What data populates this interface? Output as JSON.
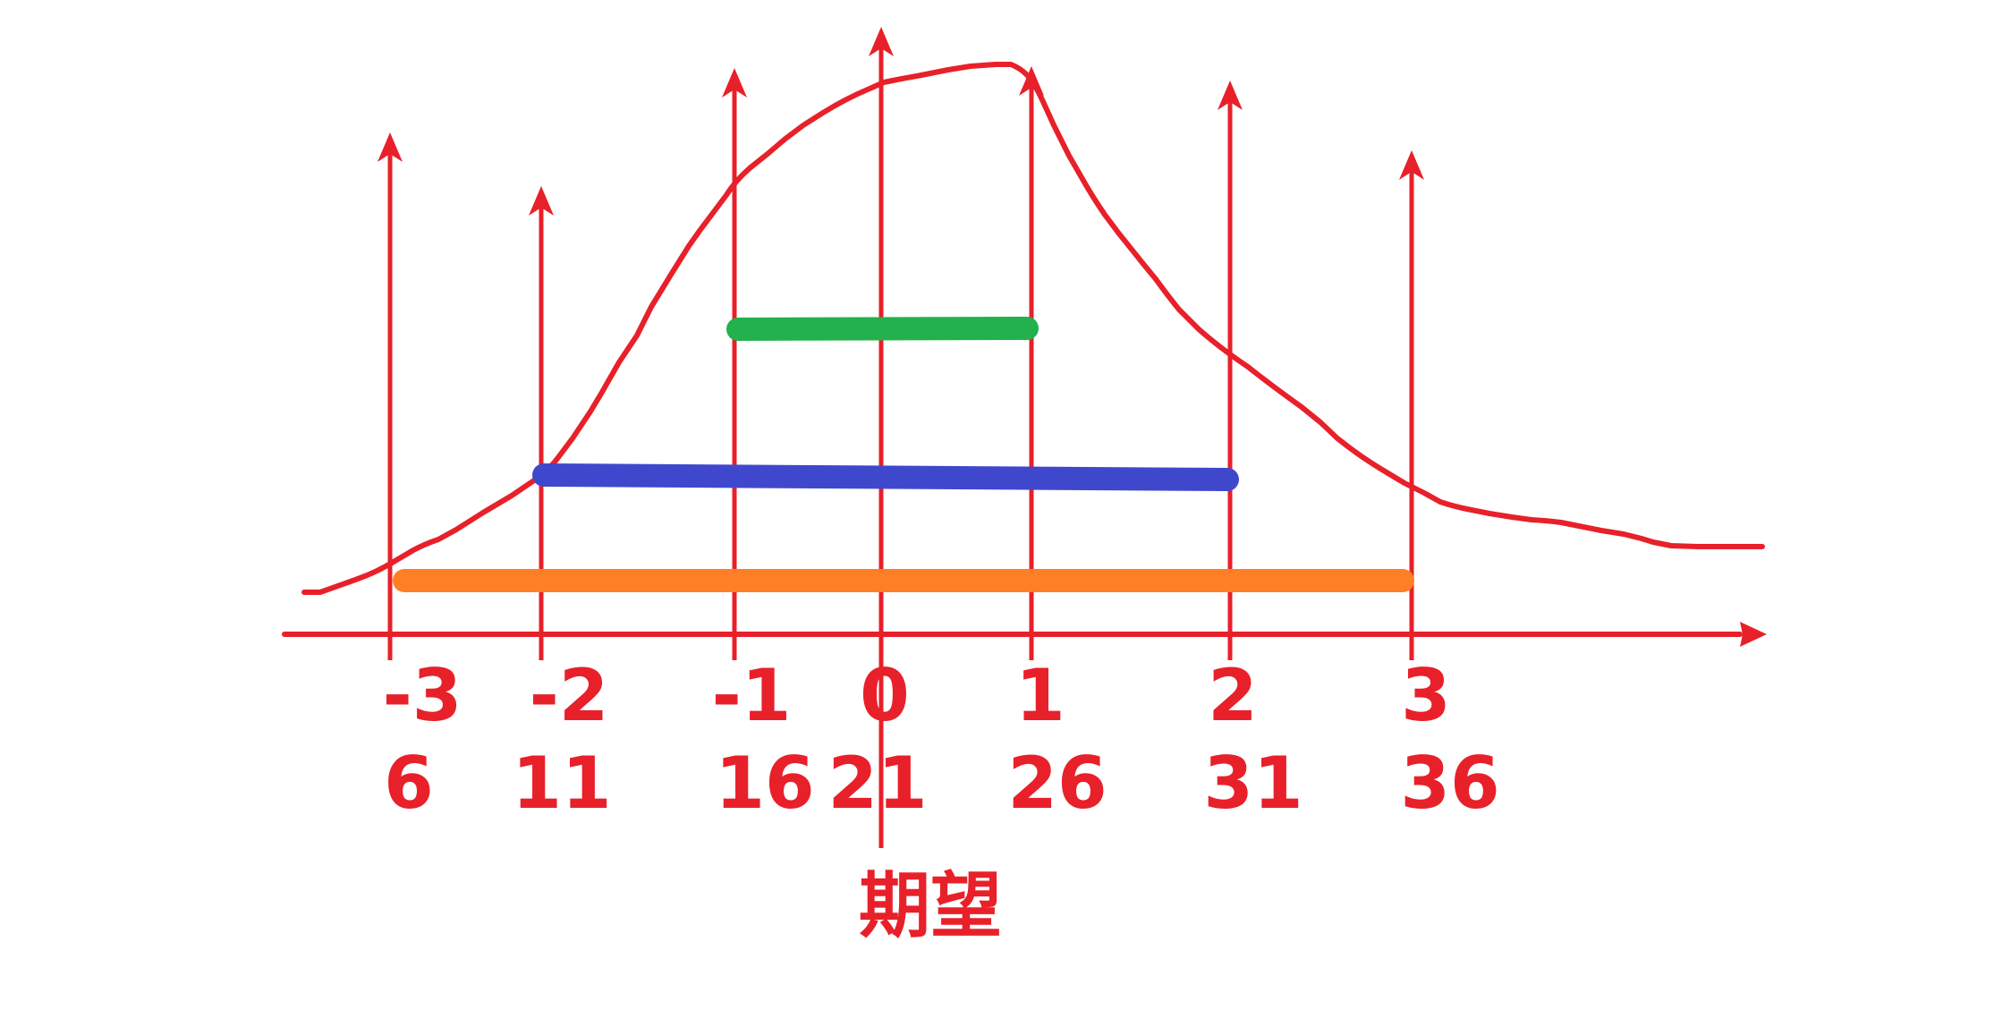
{
  "colors": {
    "axis": "#e8202a",
    "curve": "#e8202a",
    "band_1sigma": "#22b14c",
    "band_2sigma": "#3f48cc",
    "band_3sigma": "#ff7f27"
  },
  "sigma_labels": [
    "-3",
    "-2",
    "-1",
    "0",
    "1",
    "2",
    "3"
  ],
  "value_labels": [
    "6",
    "11",
    "16",
    "21",
    "26",
    "31",
    "36"
  ],
  "caption": "期望",
  "bands": [
    {
      "from": -1,
      "to": 1,
      "color": "#22b14c"
    },
    {
      "from": -2,
      "to": 2,
      "color": "#3f48cc"
    },
    {
      "from": -3,
      "to": 3,
      "color": "#ff7f27"
    }
  ]
}
